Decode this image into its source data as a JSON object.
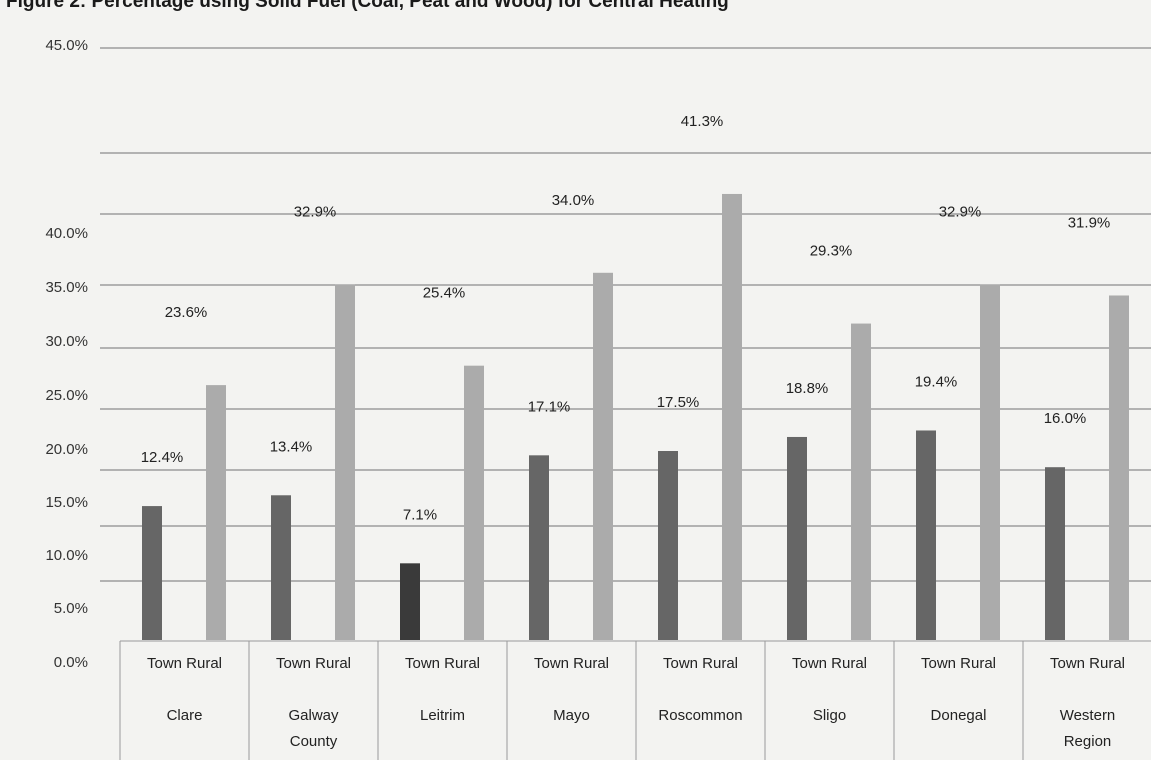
{
  "chart_data": {
    "type": "bar",
    "title": "Figure 2: Percentage using Solid Fuel (Coal, Peat and Wood) for Central Heating",
    "xlabel": "",
    "ylabel": "",
    "y_tick_labels": [
      "45.0%",
      "40.0%",
      "35.0%",
      "30.0%",
      "25.0%",
      "20.0%",
      "15.0%",
      "10.0%",
      "5.0%",
      "0.0%"
    ],
    "grid": true,
    "legend": "none",
    "groups": [
      "Clare",
      "Galway County",
      "Leitrim",
      "Mayo",
      "Roscommon",
      "Sligo",
      "Donegal",
      "Western Region"
    ],
    "sub_categories": [
      "Town",
      "Rural"
    ],
    "series": [
      {
        "values": [
          12.4,
          13.4,
          7.1,
          17.1,
          17.5,
          18.8,
          19.4,
          16.0
        ],
        "labels": [
          "12.4%",
          "13.4%",
          "7.1%",
          "17.1%",
          "17.5%",
          "18.8%",
          "19.4%",
          "16.0%"
        ]
      },
      {
        "values": [
          23.6,
          32.9,
          25.4,
          34.0,
          41.3,
          29.3,
          32.9,
          31.9
        ],
        "labels": [
          "23.6%",
          "32.9%",
          "25.4%",
          "34.0%",
          "41.3%",
          "29.3%",
          "32.9%",
          "31.9%"
        ]
      }
    ],
    "colors": {
      "town": "#666666",
      "town_dark": "#3a3a3a",
      "rural": "#ababab",
      "grid": "#8c8c8c"
    }
  }
}
